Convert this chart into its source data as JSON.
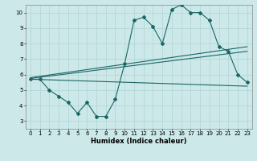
{
  "title": "",
  "xlabel": "Humidex (Indice chaleur)",
  "ylabel": "",
  "bg_color": "#cce8e8",
  "grid_color": "#b0d4d4",
  "line_color": "#1a6666",
  "xlim": [
    -0.5,
    23.5
  ],
  "ylim": [
    2.5,
    10.5
  ],
  "xticks": [
    0,
    1,
    2,
    3,
    4,
    5,
    6,
    7,
    8,
    9,
    10,
    11,
    12,
    13,
    14,
    15,
    16,
    17,
    18,
    19,
    20,
    21,
    22,
    23
  ],
  "yticks": [
    3,
    4,
    5,
    6,
    7,
    8,
    9,
    10
  ],
  "series": [
    {
      "x": [
        0,
        1,
        2,
        3,
        4,
        5,
        6,
        7,
        8,
        9,
        10,
        11,
        12,
        13,
        14,
        15,
        16,
        17,
        18,
        19,
        20,
        21,
        22,
        23
      ],
      "y": [
        5.7,
        5.7,
        5.0,
        4.6,
        4.2,
        3.5,
        4.2,
        3.3,
        3.3,
        4.4,
        6.7,
        9.5,
        9.7,
        9.1,
        8.0,
        10.2,
        10.5,
        10.0,
        10.0,
        9.5,
        7.8,
        7.5,
        6.0,
        5.5
      ],
      "marker": "D",
      "markersize": 2.0,
      "linewidth": 0.8
    },
    {
      "x": [
        0,
        23
      ],
      "y": [
        5.7,
        5.25
      ],
      "linewidth": 0.8
    },
    {
      "x": [
        0,
        23
      ],
      "y": [
        5.75,
        7.5
      ],
      "linewidth": 0.8
    },
    {
      "x": [
        0,
        23
      ],
      "y": [
        5.8,
        7.8
      ],
      "linewidth": 0.8
    }
  ]
}
